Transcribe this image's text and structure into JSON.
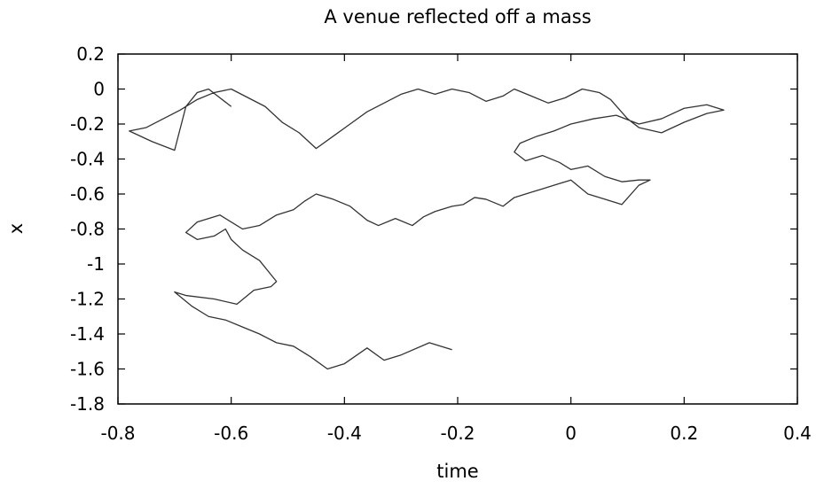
{
  "chart_data": {
    "type": "line",
    "title": "A venue reflected off a mass",
    "xlabel": "time",
    "ylabel": "x",
    "xlim": [
      -0.8,
      0.4
    ],
    "ylim": [
      -1.8,
      0.2
    ],
    "xticks": [
      -0.8,
      -0.6,
      -0.4,
      -0.2,
      0,
      0.2,
      0.4
    ],
    "xtick_labels": [
      "-0.8",
      "-0.6",
      "-0.4",
      "-0.2",
      "0",
      "0.2",
      "0.4"
    ],
    "yticks": [
      0.2,
      0,
      -0.2,
      -0.4,
      -0.6,
      -0.8,
      -1,
      -1.2,
      -1.4,
      -1.6,
      -1.8
    ],
    "ytick_labels": [
      "0.2",
      "0",
      "-0.2",
      "-0.4",
      "-0.6",
      "-0.8",
      "-1",
      "-1.2",
      "-1.4",
      "-1.6",
      "-1.8"
    ],
    "grid": false,
    "legend": "none",
    "line_color": "#333333",
    "series": [
      {
        "x": [
          -0.21,
          -0.25,
          -0.3,
          -0.33,
          -0.36,
          -0.4,
          -0.43,
          -0.46,
          -0.49,
          -0.52,
          -0.55,
          -0.58,
          -0.61,
          -0.64,
          -0.67,
          -0.7,
          -0.68,
          -0.63,
          -0.59,
          -0.56,
          -0.53,
          -0.52,
          -0.55,
          -0.58,
          -0.6,
          -0.61,
          -0.63,
          -0.66,
          -0.68,
          -0.66,
          -0.62,
          -0.58,
          -0.55,
          -0.52,
          -0.49,
          -0.47,
          -0.45,
          -0.42,
          -0.39,
          -0.36,
          -0.34,
          -0.31,
          -0.28,
          -0.26,
          -0.24,
          -0.21,
          -0.19,
          -0.17,
          -0.15,
          -0.12,
          -0.1,
          -0.07,
          -0.05,
          -0.03,
          0.0,
          0.03,
          0.06,
          0.09,
          0.12,
          0.14,
          0.12,
          0.09,
          0.06,
          0.03,
          0.0,
          -0.02,
          -0.05,
          -0.08,
          -0.1,
          -0.09,
          -0.06,
          -0.03,
          0.0,
          0.04,
          0.08,
          0.12,
          0.16,
          0.2,
          0.24,
          0.27,
          0.24,
          0.2,
          0.16,
          0.12,
          0.1,
          0.07,
          0.05,
          0.02,
          -0.01,
          -0.04,
          -0.07,
          -0.1,
          -0.12,
          -0.15,
          -0.18,
          -0.21,
          -0.24,
          -0.27,
          -0.3,
          -0.33,
          -0.36,
          -0.39,
          -0.42,
          -0.45,
          -0.48,
          -0.51,
          -0.54,
          -0.57,
          -0.6,
          -0.63,
          -0.66,
          -0.69,
          -0.72,
          -0.75,
          -0.78,
          -0.74,
          -0.7,
          -0.68,
          -0.66,
          -0.64,
          -0.62,
          -0.6
        ],
        "y": [
          -1.49,
          -1.45,
          -1.52,
          -1.55,
          -1.48,
          -1.57,
          -1.6,
          -1.53,
          -1.47,
          -1.45,
          -1.4,
          -1.36,
          -1.32,
          -1.3,
          -1.24,
          -1.16,
          -1.18,
          -1.2,
          -1.23,
          -1.15,
          -1.13,
          -1.1,
          -0.98,
          -0.92,
          -0.86,
          -0.8,
          -0.84,
          -0.86,
          -0.82,
          -0.76,
          -0.72,
          -0.8,
          -0.78,
          -0.72,
          -0.69,
          -0.64,
          -0.6,
          -0.63,
          -0.67,
          -0.75,
          -0.78,
          -0.74,
          -0.78,
          -0.73,
          -0.7,
          -0.67,
          -0.66,
          -0.62,
          -0.63,
          -0.67,
          -0.62,
          -0.59,
          -0.57,
          -0.55,
          -0.52,
          -0.6,
          -0.63,
          -0.66,
          -0.55,
          -0.52,
          -0.52,
          -0.53,
          -0.5,
          -0.44,
          -0.46,
          -0.42,
          -0.38,
          -0.41,
          -0.36,
          -0.31,
          -0.27,
          -0.24,
          -0.2,
          -0.17,
          -0.15,
          -0.2,
          -0.17,
          -0.11,
          -0.09,
          -0.12,
          -0.14,
          -0.19,
          -0.25,
          -0.22,
          -0.17,
          -0.06,
          -0.02,
          0.0,
          -0.05,
          -0.08,
          -0.04,
          0.0,
          -0.04,
          -0.07,
          -0.02,
          0.0,
          -0.03,
          0.0,
          -0.03,
          -0.08,
          -0.13,
          -0.2,
          -0.27,
          -0.34,
          -0.25,
          -0.19,
          -0.1,
          -0.05,
          0.0,
          -0.02,
          -0.06,
          -0.12,
          -0.17,
          -0.22,
          -0.24,
          -0.3,
          -0.35,
          -0.1,
          -0.02,
          0.0,
          -0.05,
          -0.1
        ]
      }
    ]
  }
}
